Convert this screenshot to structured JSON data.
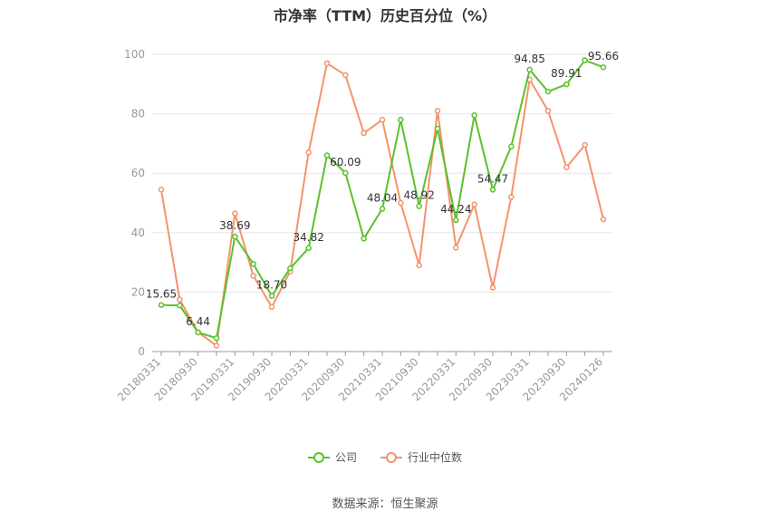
{
  "title": "市净率（TTM）历史百分位（%）",
  "source": "数据来源：恒生聚源",
  "legend": {
    "company": "公司",
    "industry": "行业中位数"
  },
  "colors": {
    "company": "#5ac12a",
    "industry": "#f4936b",
    "grid": "#e6e6e6",
    "axis": "#999999"
  },
  "chart_data": {
    "type": "line",
    "title": "市净率（TTM）历史百分位（%）",
    "xlabel": "",
    "ylabel": "",
    "ylim": [
      0,
      100
    ],
    "yticks": [
      "0",
      "20",
      "40",
      "60",
      "80",
      "100"
    ],
    "xtick_labels": [
      "20180331",
      "20180930",
      "20190331",
      "20190930",
      "20200331",
      "20200930",
      "20210331",
      "20210930",
      "20220331",
      "20220930",
      "20230331",
      "20230930",
      "20240126"
    ],
    "xtick_index": [
      0,
      2,
      4,
      6,
      8,
      10,
      12,
      14,
      16,
      18,
      20,
      22,
      24
    ],
    "x": [
      "20180331",
      "20180630",
      "20180930",
      "20181231",
      "20190331",
      "20190630",
      "20190930",
      "20191231",
      "20200331",
      "20200630",
      "20200930",
      "20201231",
      "20210331",
      "20210630",
      "20210930",
      "20211231",
      "20220331",
      "20220630",
      "20220930",
      "20221231",
      "20230331",
      "20230630",
      "20230930",
      "20231231",
      "20240126"
    ],
    "grid": true,
    "legend_position": "bottom",
    "series": [
      {
        "name": "公司",
        "values": [
          15.65,
          15.5,
          6.44,
          4.5,
          38.69,
          29.5,
          18.7,
          28.0,
          34.82,
          66.0,
          60.09,
          38.0,
          48.04,
          78.0,
          48.92,
          75.0,
          44.24,
          79.5,
          54.47,
          69.0,
          94.85,
          87.5,
          89.91,
          98.0,
          95.66
        ]
      },
      {
        "name": "行业中位数",
        "values": [
          54.5,
          17.5,
          6.5,
          2.0,
          46.5,
          25.5,
          15.0,
          27.0,
          67.0,
          97.0,
          93.0,
          73.5,
          78.0,
          50.0,
          29.0,
          81.0,
          35.0,
          49.5,
          21.5,
          52.0,
          91.5,
          81.0,
          62.0,
          69.5,
          44.5
        ]
      }
    ],
    "data_labels": [
      {
        "index": 0,
        "text": "15.65"
      },
      {
        "index": 2,
        "text": "6.44"
      },
      {
        "index": 4,
        "text": "38.69"
      },
      {
        "index": 6,
        "text": "18.70"
      },
      {
        "index": 8,
        "text": "34.82"
      },
      {
        "index": 10,
        "text": "60.09"
      },
      {
        "index": 12,
        "text": "48.04"
      },
      {
        "index": 14,
        "text": "48.92"
      },
      {
        "index": 16,
        "text": "44.24"
      },
      {
        "index": 18,
        "text": "54.47"
      },
      {
        "index": 20,
        "text": "94.85"
      },
      {
        "index": 22,
        "text": "89.91"
      },
      {
        "index": 24,
        "text": "95.66"
      }
    ]
  }
}
